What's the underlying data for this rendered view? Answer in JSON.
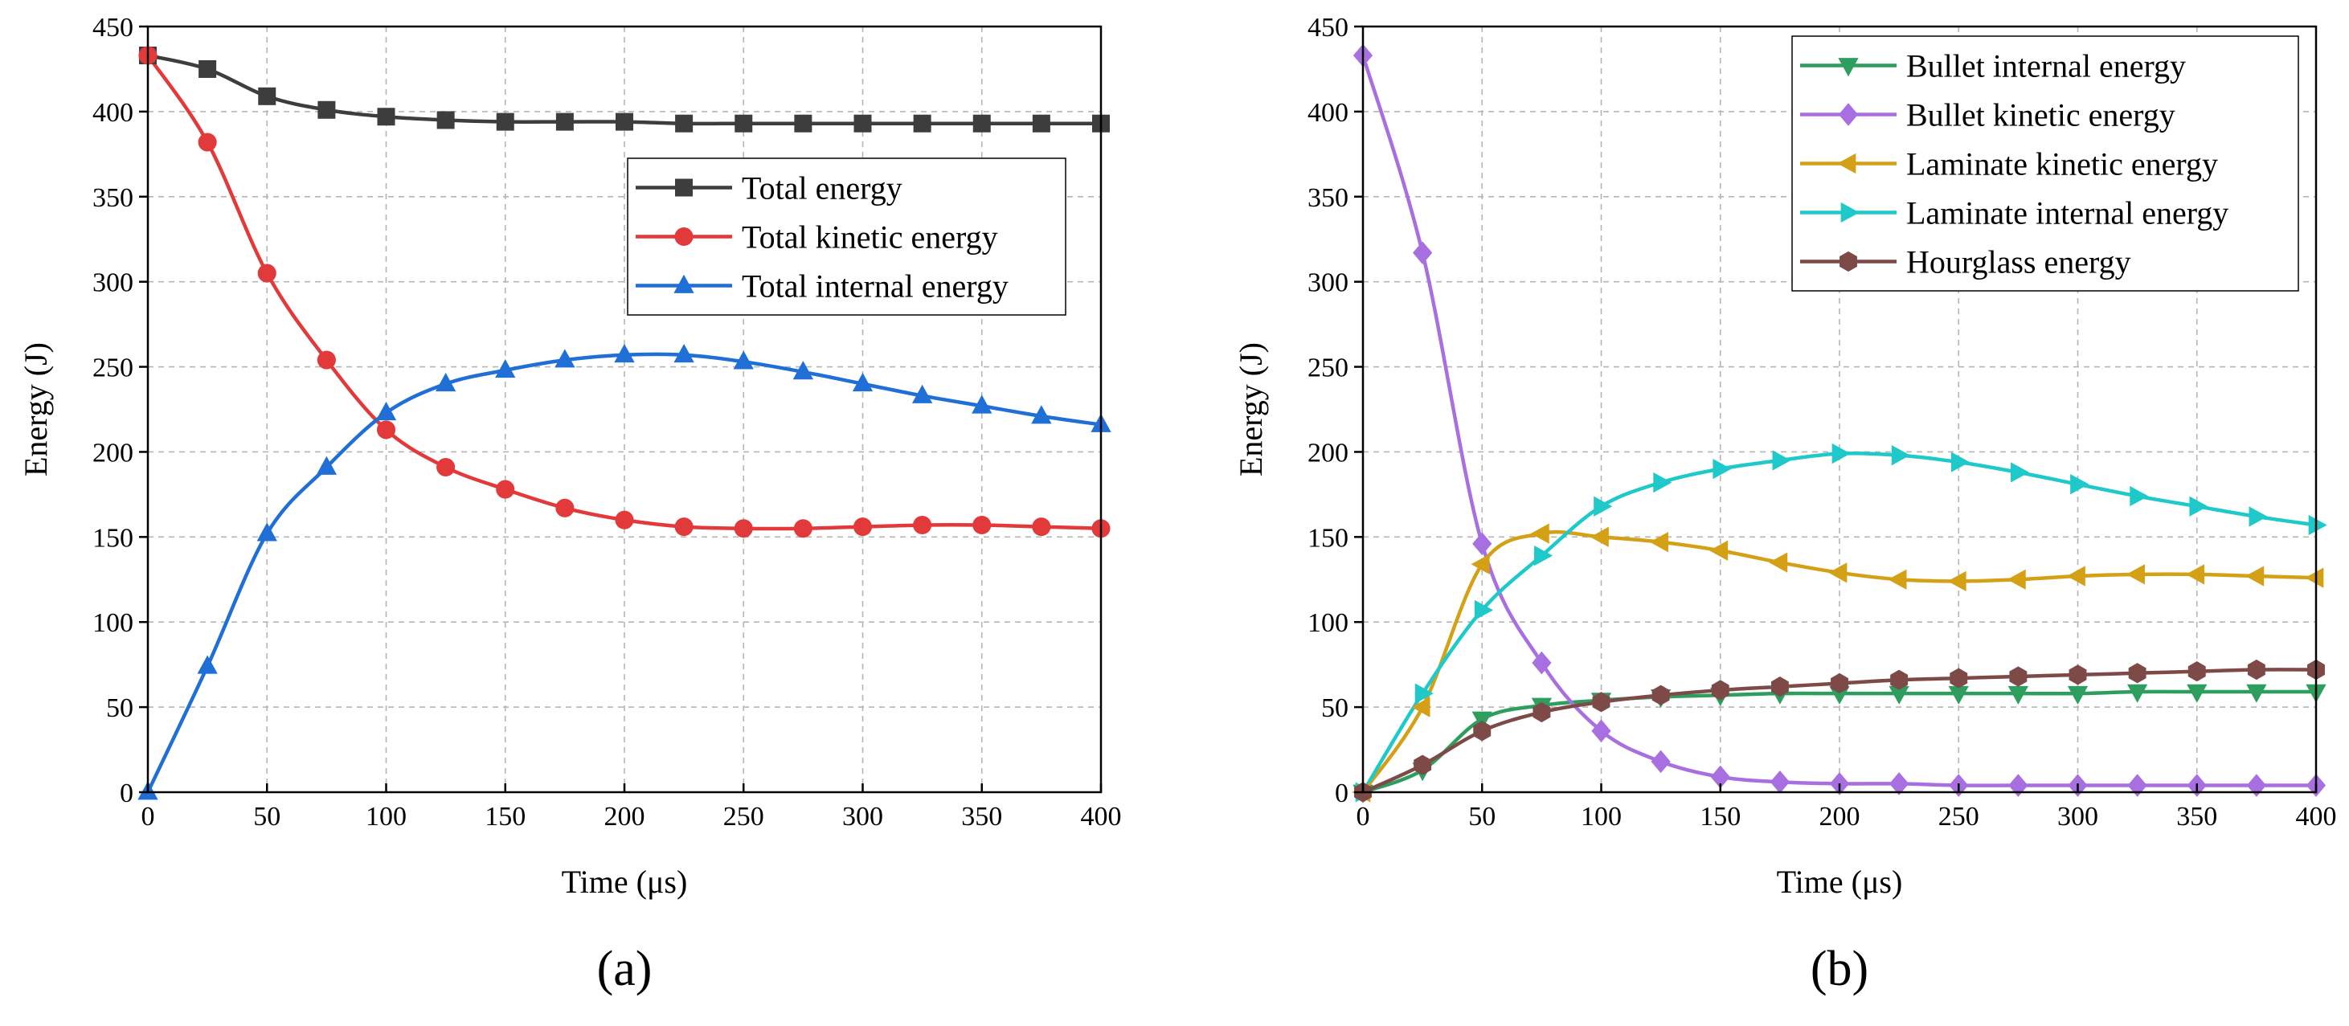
{
  "chart_data": [
    {
      "type": "line",
      "panel_label": "(a)",
      "xlabel": "Time (μs)",
      "ylabel": "Energy (J)",
      "xlim": [
        0,
        400
      ],
      "ylim": [
        0,
        450
      ],
      "xticks": [
        0,
        50,
        100,
        150,
        200,
        250,
        300,
        350,
        400
      ],
      "yticks": [
        0,
        50,
        100,
        150,
        200,
        250,
        300,
        350,
        400,
        450
      ],
      "grid": true,
      "legend_position": "top-right",
      "series": [
        {
          "name": "Total energy",
          "color": "#3d3d3d",
          "marker": "square",
          "x": [
            0,
            25,
            50,
            75,
            100,
            125,
            150,
            175,
            200,
            225,
            250,
            275,
            300,
            325,
            350,
            375,
            400
          ],
          "values": [
            433,
            425,
            409,
            401,
            397,
            395,
            394,
            394,
            394,
            393,
            393,
            393,
            393,
            393,
            393,
            393,
            393
          ]
        },
        {
          "name": "Total kinetic energy",
          "color": "#e23a3a",
          "marker": "circle",
          "x": [
            0,
            25,
            50,
            75,
            100,
            125,
            150,
            175,
            200,
            225,
            250,
            275,
            300,
            325,
            350,
            375,
            400
          ],
          "values": [
            433,
            382,
            305,
            254,
            213,
            191,
            178,
            167,
            160,
            156,
            155,
            155,
            156,
            157,
            157,
            156,
            155
          ]
        },
        {
          "name": "Total internal energy",
          "color": "#1f6fd6",
          "marker": "triangle-up",
          "x": [
            0,
            25,
            50,
            75,
            100,
            125,
            150,
            175,
            200,
            225,
            250,
            275,
            300,
            325,
            350,
            375,
            400
          ],
          "values": [
            0,
            74,
            152,
            191,
            223,
            240,
            248,
            254,
            257,
            257,
            253,
            247,
            240,
            233,
            227,
            221,
            216
          ]
        }
      ]
    },
    {
      "type": "line",
      "panel_label": "(b)",
      "xlabel": "Time (μs)",
      "ylabel": "Energy (J)",
      "xlim": [
        0,
        400
      ],
      "ylim": [
        0,
        450
      ],
      "xticks": [
        0,
        50,
        100,
        150,
        200,
        250,
        300,
        350,
        400
      ],
      "yticks": [
        0,
        50,
        100,
        150,
        200,
        250,
        300,
        350,
        400,
        450
      ],
      "grid": true,
      "legend_position": "top-right",
      "series": [
        {
          "name": "Bullet internal energy",
          "color": "#2e9e5e",
          "marker": "triangle-down",
          "x": [
            0,
            25,
            50,
            75,
            100,
            125,
            150,
            175,
            200,
            225,
            250,
            275,
            300,
            325,
            350,
            375,
            400
          ],
          "values": [
            0,
            13,
            43,
            51,
            54,
            56,
            57,
            58,
            58,
            58,
            58,
            58,
            58,
            59,
            59,
            59,
            59
          ]
        },
        {
          "name": "Bullet kinetic energy",
          "color": "#a86fe0",
          "marker": "diamond",
          "x": [
            0,
            25,
            50,
            75,
            100,
            125,
            150,
            175,
            200,
            225,
            250,
            275,
            300,
            325,
            350,
            375,
            400
          ],
          "values": [
            433,
            317,
            146,
            76,
            36,
            18,
            9,
            6,
            5,
            5,
            4,
            4,
            4,
            4,
            4,
            4,
            4
          ]
        },
        {
          "name": "Laminate kinetic energy",
          "color": "#d4a016",
          "marker": "triangle-left",
          "x": [
            0,
            25,
            50,
            75,
            100,
            125,
            150,
            175,
            200,
            225,
            250,
            275,
            300,
            325,
            350,
            375,
            400
          ],
          "values": [
            0,
            50,
            134,
            152,
            150,
            147,
            142,
            135,
            129,
            125,
            124,
            125,
            127,
            128,
            128,
            127,
            126
          ]
        },
        {
          "name": "Laminate internal energy",
          "color": "#1fc9c9",
          "marker": "triangle-right",
          "x": [
            0,
            25,
            50,
            75,
            100,
            125,
            150,
            175,
            200,
            225,
            250,
            275,
            300,
            325,
            350,
            375,
            400
          ],
          "values": [
            0,
            58,
            107,
            139,
            168,
            182,
            190,
            195,
            199,
            198,
            194,
            188,
            181,
            174,
            168,
            162,
            157
          ]
        },
        {
          "name": "Hourglass energy",
          "color": "#7d4a48",
          "marker": "hexagon",
          "x": [
            0,
            25,
            50,
            75,
            100,
            125,
            150,
            175,
            200,
            225,
            250,
            275,
            300,
            325,
            350,
            375,
            400
          ],
          "values": [
            0,
            16,
            36,
            47,
            53,
            57,
            60,
            62,
            64,
            66,
            67,
            68,
            69,
            70,
            71,
            72,
            72
          ]
        }
      ]
    }
  ]
}
